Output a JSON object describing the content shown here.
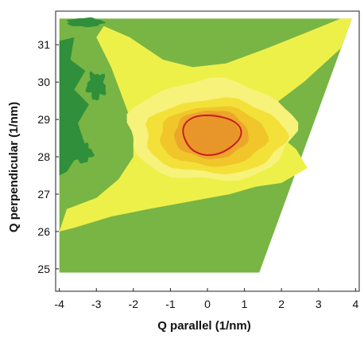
{
  "chart_data": {
    "type": "heatmap",
    "xlabel": "Q parallel (1/nm)",
    "ylabel": "Q perpendicular (1/nm)",
    "xlim": [
      -4.1,
      4.1
    ],
    "ylim": [
      24.4,
      31.9
    ],
    "xticks": [
      -4,
      -3,
      -2,
      -1,
      0,
      1,
      2,
      3,
      4
    ],
    "yticks": [
      25,
      26,
      27,
      28,
      29,
      30,
      31
    ],
    "data_region": {
      "description": "parallelogram-shaped measured region",
      "corners": [
        [
          -4.0,
          24.9
        ],
        [
          1.4,
          24.9
        ],
        [
          3.9,
          31.7
        ],
        [
          -4.0,
          31.7
        ]
      ]
    },
    "peak": {
      "x": 0.1,
      "y": 28.6
    },
    "contour_levels": [
      {
        "level": 1,
        "color": "#2f8f3a"
      },
      {
        "level": 2,
        "color": "#78b544"
      },
      {
        "level": 3,
        "color": "#eef04a"
      },
      {
        "level": 4,
        "color": "#f7f27a"
      },
      {
        "level": 5,
        "color": "#f3e13a"
      },
      {
        "level": 6,
        "color": "#f0c62a"
      },
      {
        "level": 7,
        "color": "#eca62a"
      },
      {
        "level": 8,
        "color": "#e8952a"
      }
    ],
    "highlight_contour_color": "#c81e1e",
    "grid": false
  }
}
